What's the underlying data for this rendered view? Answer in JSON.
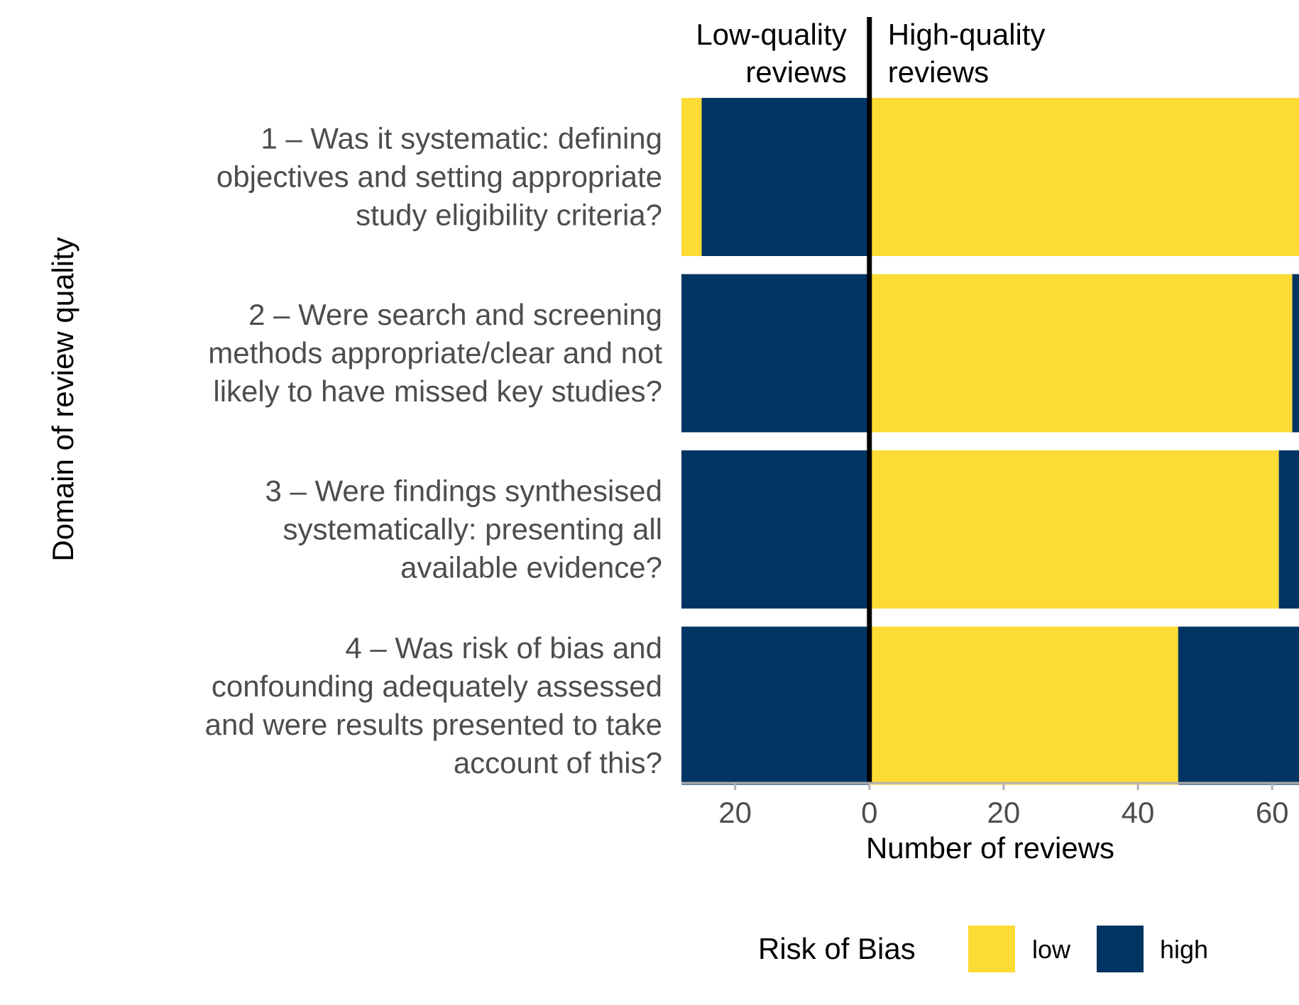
{
  "chart_data": {
    "type": "bar",
    "orientation": "horizontal",
    "stacked": "diverging",
    "xlabel": "Number of reviews",
    "ylabel": "Domain of review quality",
    "xlim": [
      -28,
      64
    ],
    "xtick_values": [
      -20,
      0,
      20,
      40,
      60
    ],
    "xtick_labels": [
      "20",
      "0",
      "20",
      "40",
      "60"
    ],
    "grid": false,
    "side_labels": {
      "left": [
        "Low-quality",
        "reviews"
      ],
      "right": [
        "High-quality",
        "reviews"
      ]
    },
    "categories": [
      [
        "1 – Was it systematic: defining",
        "objectives and setting appropriate",
        "study eligibility criteria?"
      ],
      [
        "2 – Were search and screening",
        "methods appropriate/clear and not",
        "likely to have missed key studies?"
      ],
      [
        "3 – Were findings synthesised",
        "systematically: presenting all",
        "available evidence?"
      ],
      [
        "4 – Was risk of bias and",
        "confounding adequately assessed",
        "and were results presented to take",
        "account of this?"
      ]
    ],
    "series": [
      {
        "group": "Low-quality reviews",
        "name": "high",
        "values": [
          25,
          29,
          28,
          29
        ]
      },
      {
        "group": "Low-quality reviews",
        "name": "low",
        "values": [
          3,
          4,
          7,
          4
        ]
      },
      {
        "group": "High-quality reviews",
        "name": "low",
        "values": [
          64,
          63,
          61,
          46
        ]
      },
      {
        "group": "High-quality reviews",
        "name": "high",
        "values": [
          0,
          1,
          3,
          18
        ]
      }
    ],
    "legend": {
      "title": "Risk of Bias",
      "position": "bottom",
      "items": [
        {
          "label": "low",
          "color": "#FDDB35"
        },
        {
          "label": "high",
          "color": "#003462"
        }
      ]
    },
    "colors": {
      "low": "#FDDB35",
      "high": "#003462",
      "zero_line": "#000000",
      "axis": "#b3b3b3",
      "text": "#4d4d4d"
    }
  }
}
